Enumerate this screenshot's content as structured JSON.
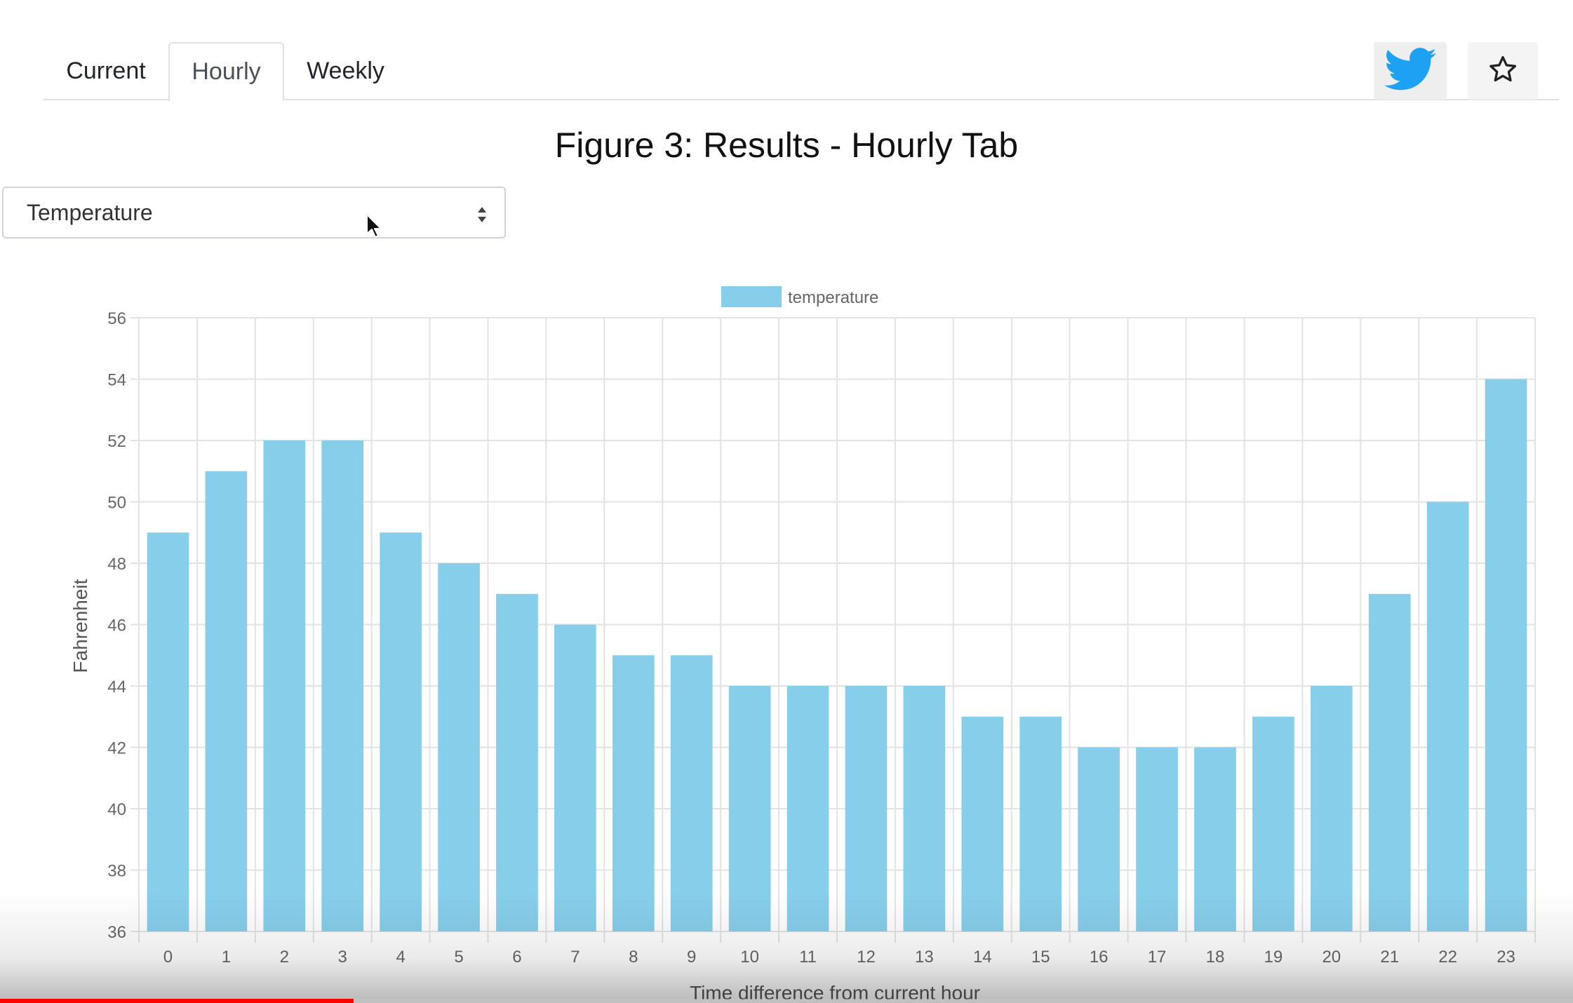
{
  "tabs": [
    {
      "label": "Current"
    },
    {
      "label": "Hourly"
    },
    {
      "label": "Weekly"
    }
  ],
  "active_tab": "Hourly",
  "toolbar": {
    "twitter_icon": "twitter-bird-icon",
    "star_icon": "star-outline-icon",
    "twitter_color": "#1da1f2"
  },
  "figure_title": "Figure 3: Results - Hourly Tab",
  "select": {
    "value": "Temperature"
  },
  "video_progress": 0.225,
  "chart_data": {
    "type": "bar",
    "categories": [
      "0",
      "1",
      "2",
      "3",
      "4",
      "5",
      "6",
      "7",
      "8",
      "9",
      "10",
      "11",
      "12",
      "13",
      "14",
      "15",
      "16",
      "17",
      "18",
      "19",
      "20",
      "21",
      "22",
      "23"
    ],
    "series": [
      {
        "name": "temperature",
        "values": [
          49,
          51,
          52,
          52,
          49,
          48,
          47,
          46,
          45,
          45,
          44,
          44,
          44,
          44,
          43,
          43,
          42,
          42,
          42,
          43,
          44,
          47,
          50,
          54
        ],
        "color": "#87ceeb"
      }
    ],
    "title": "",
    "xlabel": "Time difference from current hour",
    "ylabel": "Fahrenheit",
    "ylim": [
      36,
      56
    ],
    "yticks": [
      "36",
      "38",
      "40",
      "42",
      "44",
      "46",
      "48",
      "50",
      "52",
      "54",
      "56"
    ],
    "grid": true,
    "legend": "top-center"
  }
}
